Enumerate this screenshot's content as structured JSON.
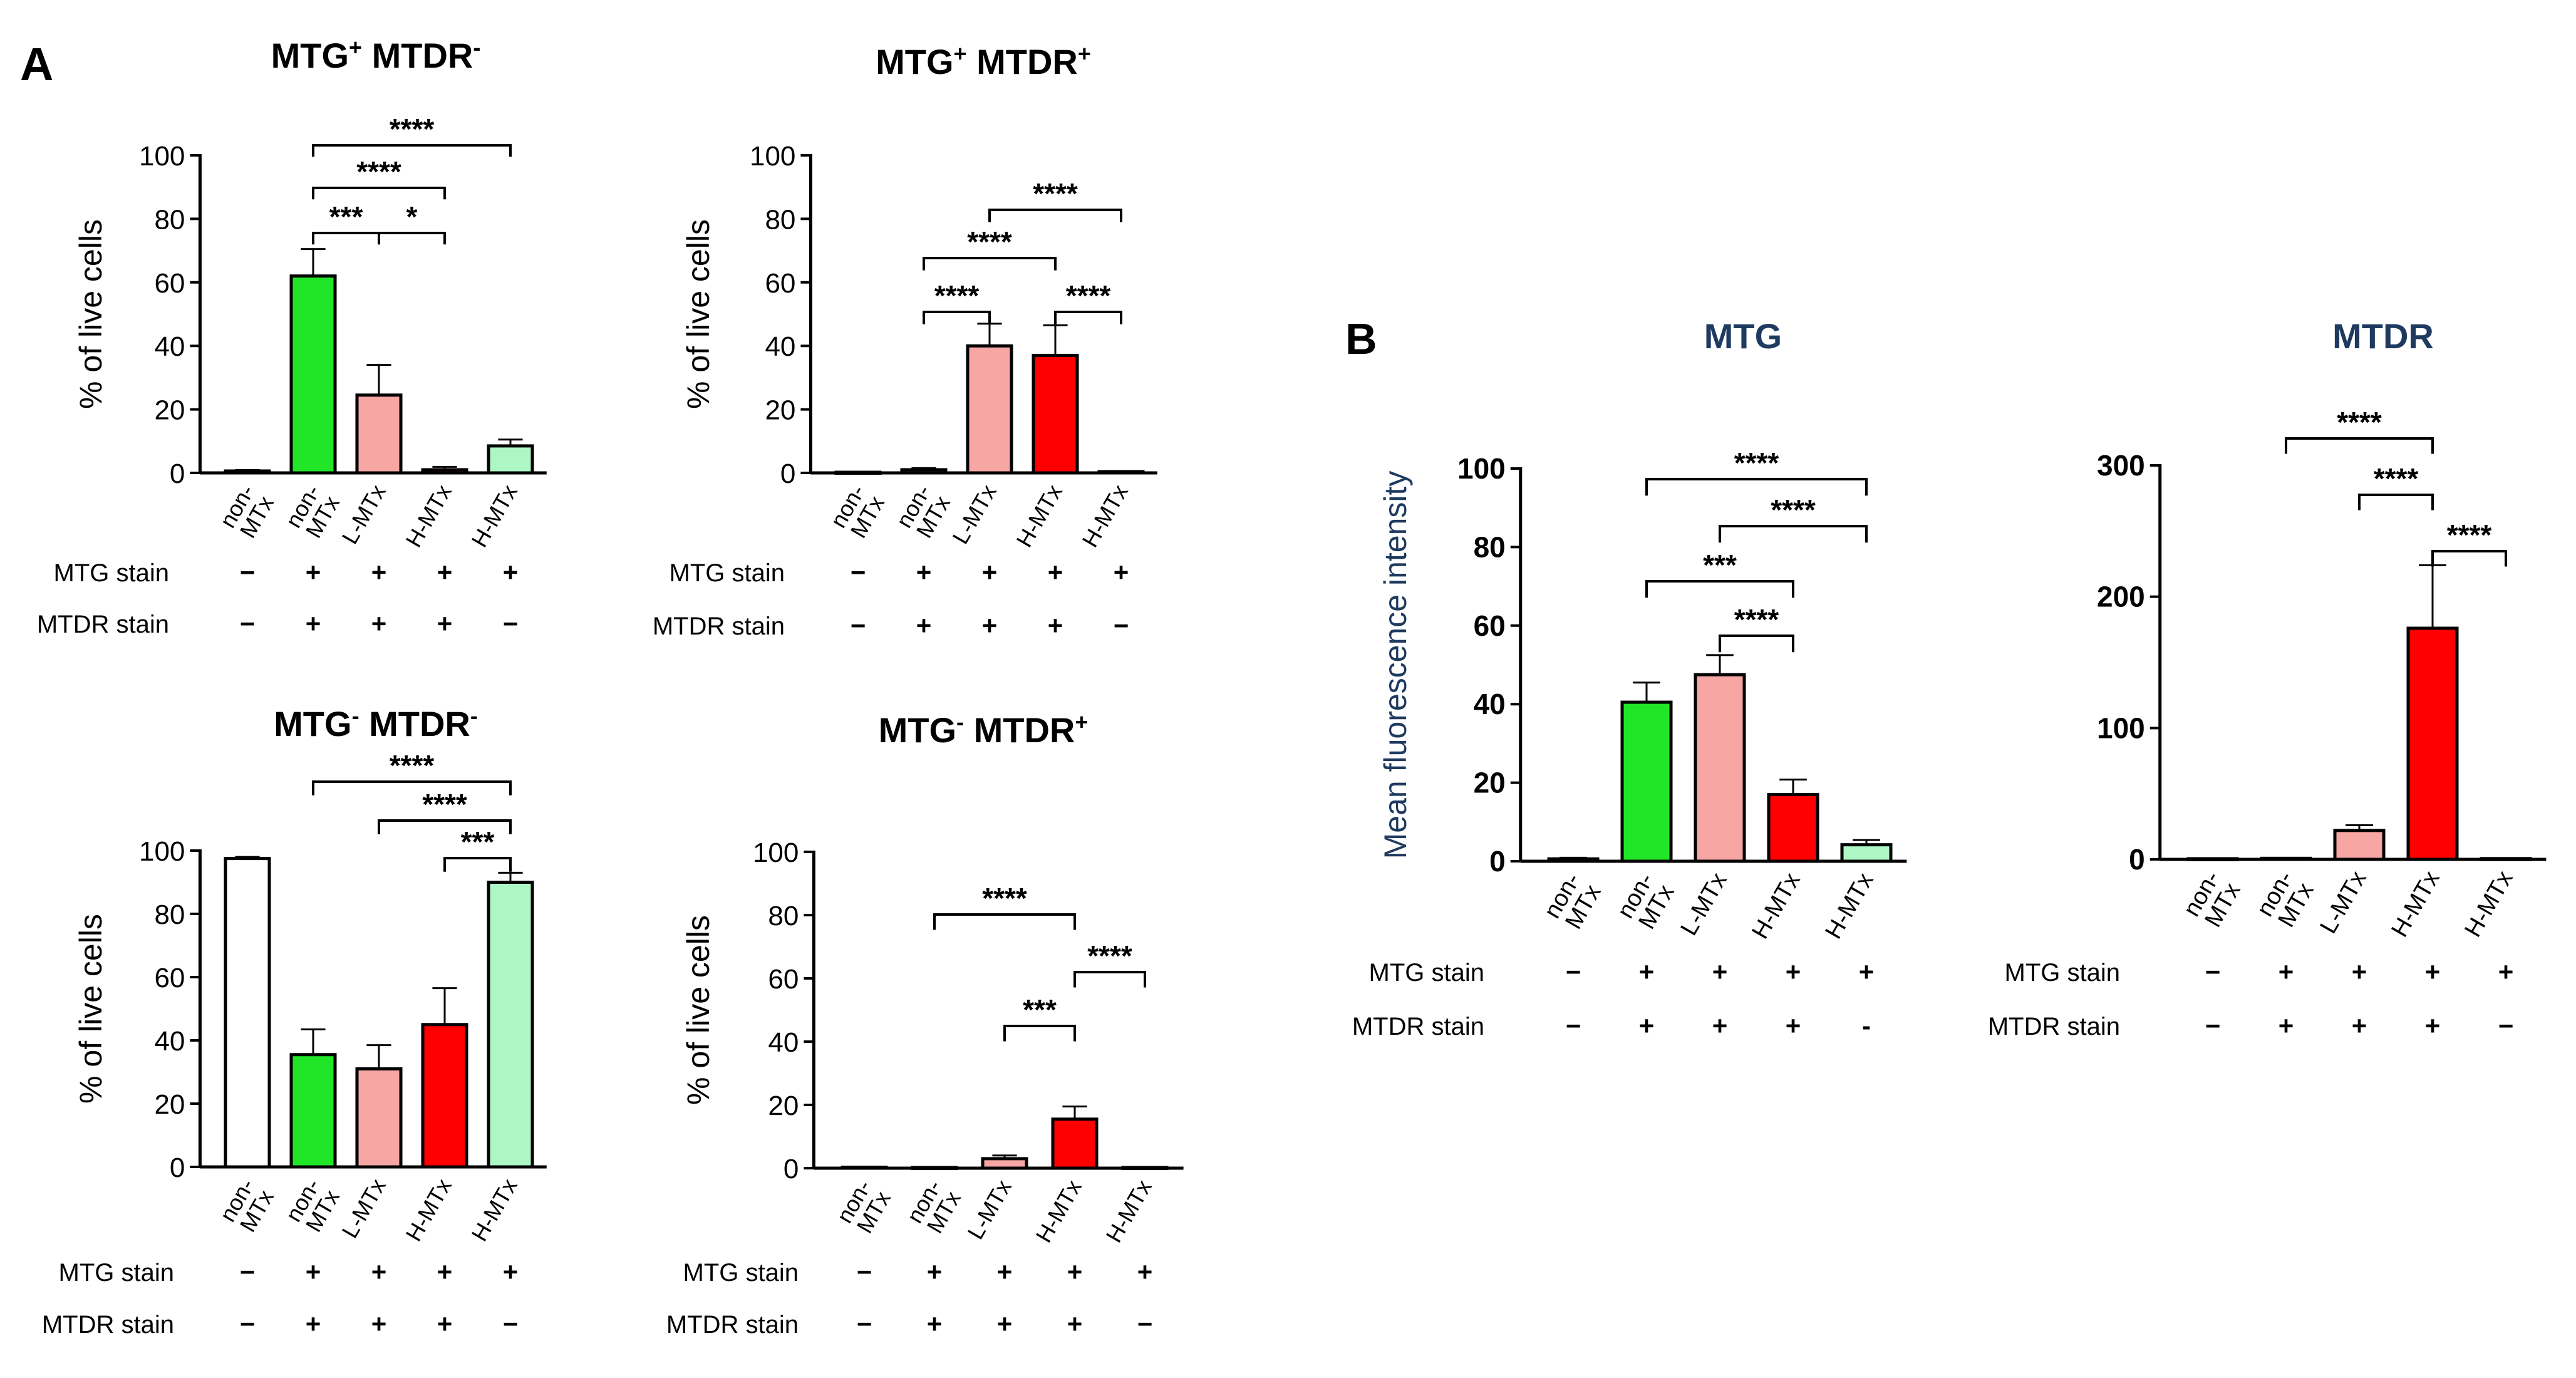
{
  "panel_labels": {
    "a": "A",
    "b": "B"
  },
  "row_labels": {
    "mtg": "MTG stain",
    "mtdr": "MTDR stain"
  },
  "chart_data": [
    {
      "id": "a1",
      "type": "bar",
      "title_parts": [
        {
          "t": "MTG"
        },
        {
          "t": "+",
          "sup": true
        },
        {
          "t": " MTDR"
        },
        {
          "t": "-",
          "sup": true
        }
      ],
      "ylabel": "% of live cells",
      "ylim": [
        0,
        100
      ],
      "yticks": [
        0,
        20,
        40,
        60,
        80,
        100
      ],
      "categories": [
        "non-MTx",
        "non-MTx",
        "L-MTx",
        "H-MTx",
        "H-MTx"
      ],
      "category_lines": [
        [
          "non-",
          "MTx"
        ],
        [
          "non-",
          "MTx"
        ],
        [
          "L-MTx"
        ],
        [
          "H-MTx"
        ],
        [
          "H-MTx"
        ]
      ],
      "values": [
        0.6,
        62,
        24.5,
        1.0,
        8.5
      ],
      "errors": [
        0.3,
        8.5,
        9.5,
        0.9,
        2.0
      ],
      "colors": [
        "#ffffff",
        "#21e628",
        "#f8a6a3",
        "#ff0000",
        "#adf7c5"
      ],
      "stain_mtg": [
        "−",
        "+",
        "+",
        "+",
        "+"
      ],
      "stain_mtdr": [
        "−",
        "+",
        "+",
        "+",
        "−"
      ],
      "significance": [
        {
          "from": 1,
          "to": 4,
          "label": "****"
        },
        {
          "from": 1,
          "to": 3,
          "label": "****"
        },
        {
          "from": 1,
          "to": 2,
          "label": "***"
        },
        {
          "from": 2,
          "to": 3,
          "label": "*"
        }
      ]
    },
    {
      "id": "a2",
      "type": "bar",
      "title_parts": [
        {
          "t": "MTG"
        },
        {
          "t": "+",
          "sup": true
        },
        {
          "t": " MTDR"
        },
        {
          "t": "+",
          "sup": true
        }
      ],
      "ylabel": "% of live cells",
      "ylim": [
        0,
        100
      ],
      "yticks": [
        0,
        20,
        40,
        60,
        80,
        100
      ],
      "categories": [
        "non-MTx",
        "non-MTx",
        "L-MTx",
        "H-MTx",
        "H-MTx"
      ],
      "category_lines": [
        [
          "non-",
          "MTx"
        ],
        [
          "non-",
          "MTx"
        ],
        [
          "L-MTx"
        ],
        [
          "H-MTx"
        ],
        [
          "H-MTx"
        ]
      ],
      "values": [
        0.2,
        1.0,
        40,
        37,
        0.4
      ],
      "errors": [
        0.1,
        0.5,
        7,
        9.5,
        0.2
      ],
      "colors": [
        "#ffffff",
        "#21e628",
        "#f8a6a3",
        "#ff0000",
        "#adf7c5"
      ],
      "stain_mtg": [
        "−",
        "+",
        "+",
        "+",
        "+"
      ],
      "stain_mtdr": [
        "−",
        "+",
        "+",
        "+",
        "−"
      ],
      "significance": [
        {
          "from": 2,
          "to": 4,
          "label": "****"
        },
        {
          "from": 1,
          "to": 3,
          "label": "****"
        },
        {
          "from": 1,
          "to": 2,
          "label": "****"
        },
        {
          "from": 3,
          "to": 4,
          "label": "****"
        }
      ]
    },
    {
      "id": "a3",
      "type": "bar",
      "title_parts": [
        {
          "t": "MTG"
        },
        {
          "t": "-",
          "sup": true
        },
        {
          "t": " MTDR"
        },
        {
          "t": "-",
          "sup": true
        }
      ],
      "ylabel": "% of live cells",
      "ylim": [
        0,
        100
      ],
      "yticks": [
        0,
        20,
        40,
        60,
        80,
        100
      ],
      "categories": [
        "non-MTx",
        "non-MTx",
        "L-MTx",
        "H-MTx",
        "H-MTx"
      ],
      "category_lines": [
        [
          "non-",
          "MTx"
        ],
        [
          "non-",
          "MTx"
        ],
        [
          "L-MTx"
        ],
        [
          "H-MTx"
        ],
        [
          "H-MTx"
        ]
      ],
      "values": [
        97.5,
        35.5,
        31,
        45,
        90
      ],
      "errors": [
        0.5,
        8,
        7.5,
        11.5,
        3
      ],
      "colors": [
        "#ffffff",
        "#21e628",
        "#f8a6a3",
        "#ff0000",
        "#adf7c5"
      ],
      "stain_mtg": [
        "−",
        "+",
        "+",
        "+",
        "+"
      ],
      "stain_mtdr": [
        "−",
        "+",
        "+",
        "+",
        "−"
      ],
      "significance": [
        {
          "from": 1,
          "to": 4,
          "label": "****"
        },
        {
          "from": 2,
          "to": 4,
          "label": "****"
        },
        {
          "from": 3,
          "to": 4,
          "label": "***"
        }
      ]
    },
    {
      "id": "a4",
      "type": "bar",
      "title_parts": [
        {
          "t": "MTG"
        },
        {
          "t": "-",
          "sup": true
        },
        {
          "t": " MTDR"
        },
        {
          "t": "+",
          "sup": true
        }
      ],
      "ylabel": "% of live cells",
      "ylim": [
        0,
        100
      ],
      "yticks": [
        0,
        20,
        40,
        60,
        80,
        100
      ],
      "categories": [
        "non-MTx",
        "non-MTx",
        "L-MTx",
        "H-MTx",
        "H-MTx"
      ],
      "category_lines": [
        [
          "non-",
          "MTx"
        ],
        [
          "non-",
          "MTx"
        ],
        [
          "L-MTx"
        ],
        [
          "H-MTx"
        ],
        [
          "H-MTx"
        ]
      ],
      "values": [
        0.3,
        0.2,
        3,
        15.5,
        0.2
      ],
      "errors": [
        0.2,
        0.1,
        1.0,
        4,
        0.1
      ],
      "colors": [
        "#ffffff",
        "#21e628",
        "#f8a6a3",
        "#ff0000",
        "#adf7c5"
      ],
      "stain_mtg": [
        "−",
        "+",
        "+",
        "+",
        "+"
      ],
      "stain_mtdr": [
        "−",
        "+",
        "+",
        "+",
        "−"
      ],
      "significance": [
        {
          "from": 1,
          "to": 3,
          "label": "****"
        },
        {
          "from": 2,
          "to": 3,
          "label": "***"
        },
        {
          "from": 3,
          "to": 4,
          "label": "****"
        }
      ]
    },
    {
      "id": "b1",
      "type": "bar",
      "title_parts": [
        {
          "t": "MTG"
        }
      ],
      "title_color": "#1f3a5f",
      "ylabel": "Mean fluorescence intensity",
      "ylim": [
        0,
        100
      ],
      "yticks": [
        0,
        20,
        40,
        60,
        80,
        100
      ],
      "categories": [
        "non-MTx",
        "non-MTx",
        "L-MTx",
        "H-MTx",
        "H-MTx"
      ],
      "category_lines": [
        [
          "non-",
          "MTx"
        ],
        [
          "non-",
          "MTx"
        ],
        [
          "L-MTx"
        ],
        [
          "H-MTx"
        ],
        [
          "H-MTx"
        ]
      ],
      "values": [
        0.6,
        40.5,
        47.5,
        17,
        4.2
      ],
      "errors": [
        0.3,
        5,
        5,
        3.8,
        1.2
      ],
      "colors": [
        "#ffffff",
        "#21e628",
        "#f8a6a3",
        "#ff0000",
        "#adf7c5"
      ],
      "stain_mtg": [
        "−",
        "+",
        "+",
        "+",
        "+"
      ],
      "stain_mtdr": [
        "−",
        "+",
        "+",
        "+",
        "-"
      ],
      "significance": [
        {
          "from": 1,
          "to": 4,
          "label": "****"
        },
        {
          "from": 2,
          "to": 4,
          "label": "****"
        },
        {
          "from": 1,
          "to": 3,
          "label": "***"
        },
        {
          "from": 2,
          "to": 3,
          "label": "****"
        }
      ]
    },
    {
      "id": "b2",
      "type": "bar",
      "title_parts": [
        {
          "t": "MTDR"
        }
      ],
      "title_color": "#1f3a5f",
      "ylabel": "",
      "ylim": [
        0,
        300
      ],
      "yticks": [
        0,
        100,
        200,
        300
      ],
      "categories": [
        "non-MTx",
        "non-MTx",
        "L-MTx",
        "H-MTx",
        "H-MTx"
      ],
      "category_lines": [
        [
          "non-",
          "MTx"
        ],
        [
          "non-",
          "MTx"
        ],
        [
          "L-MTx"
        ],
        [
          "H-MTx"
        ],
        [
          "H-MTx"
        ]
      ],
      "values": [
        0.5,
        0.8,
        22,
        176,
        0.6
      ],
      "errors": [
        0.3,
        0.4,
        4,
        48,
        0.3
      ],
      "colors": [
        "#ffffff",
        "#21e628",
        "#f8a6a3",
        "#ff0000",
        "#adf7c5"
      ],
      "stain_mtg": [
        "−",
        "+",
        "+",
        "+",
        "+"
      ],
      "stain_mtdr": [
        "−",
        "+",
        "+",
        "+",
        "−"
      ],
      "significance": [
        {
          "from": 1,
          "to": 3,
          "label": "****"
        },
        {
          "from": 2,
          "to": 3,
          "label": "****"
        },
        {
          "from": 3,
          "to": 4,
          "label": "****"
        }
      ]
    }
  ]
}
